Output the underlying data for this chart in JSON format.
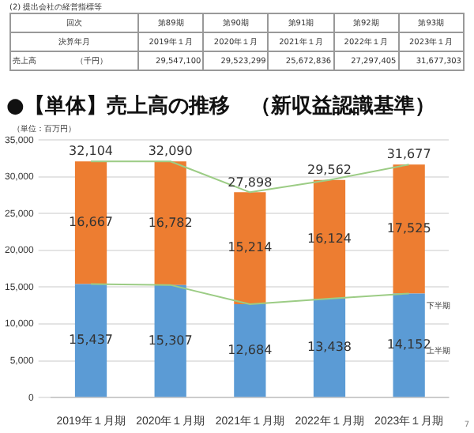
{
  "chart_data": {
    "type": "bar",
    "title": "●【単体】売上高の推移　（新収益認識基準）",
    "ylabel": "（単位：百万円）",
    "categories": [
      "2019年１月期",
      "2020年１月期",
      "2021年１月期",
      "2022年１月期",
      "2023年１月期"
    ],
    "stacked": true,
    "series": [
      {
        "name": "上半期",
        "color": "#5b9bd5",
        "values": [
          15437,
          15307,
          12684,
          13438,
          14152
        ],
        "value_labels": [
          "15,437",
          "15,307",
          "12,684",
          "13,438",
          "14,152"
        ]
      },
      {
        "name": "下半期",
        "color": "#ed7d31",
        "values": [
          16667,
          16782,
          15214,
          16124,
          17525
        ],
        "value_labels": [
          "16,667",
          "16,782",
          "15,214",
          "16,124",
          "17,525"
        ]
      },
      {
        "type": "line",
        "color": "#9ccc85",
        "values": [
          15437,
          15307,
          12684,
          13438,
          14152
        ],
        "value_labels": [
          null,
          null,
          null,
          null,
          null
        ]
      },
      {
        "type": "line",
        "color": "#9ccc85",
        "values": [
          32104,
          32090,
          27898,
          29562,
          31677
        ],
        "value_labels": [
          null,
          null,
          null,
          null,
          null
        ]
      }
    ],
    "totals": [
      "32,104",
      "32,090",
      "27,898",
      "29,562",
      "31,677"
    ],
    "ylim": [
      0,
      35000
    ],
    "yticks": [
      0,
      {
        "value": 5000,
        "label": "5,000"
      },
      {
        "value": 10000,
        "label": "10,000"
      },
      {
        "value": 15000,
        "label": "15,000"
      },
      {
        "value": 20000,
        "label": "20,000"
      },
      {
        "value": 25000,
        "label": "25,000"
      },
      {
        "value": 30000,
        "label": "30,000"
      },
      {
        "value": 35000,
        "label": "35,000"
      }
    ],
    "grid": "y",
    "legend": false,
    "marker": "none",
    "annotations": [
      "(2) 提出会社の経営指標等",
      "回次",
      "第89期",
      "第90期",
      "第91期",
      "第92期",
      "第93期",
      "決算年月",
      "2019年１月",
      "2020年１月",
      "2021年１月",
      "2022年１月",
      "2023年１月",
      "売上高　　　　　（千円）",
      "29,547,100",
      "29,523,299",
      "25,672,836",
      "27,297,405",
      "31,677,303",
      "7"
    ]
  }
}
